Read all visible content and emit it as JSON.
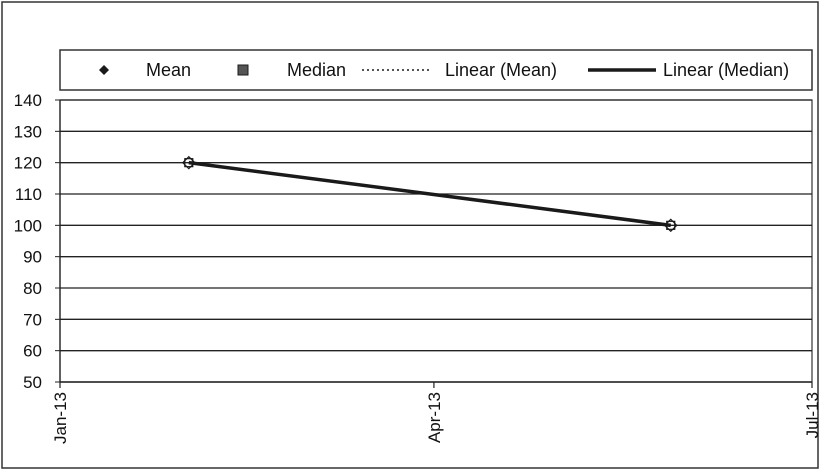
{
  "chart_data": {
    "type": "scatter",
    "title": "",
    "xlabel": "",
    "ylabel": "",
    "x_ticks": [
      "Jan-13",
      "Apr-13",
      "Jul-13"
    ],
    "xlim": [
      "2013-01-01",
      "2013-07-01"
    ],
    "ylim": [
      50,
      140
    ],
    "y_ticks": [
      50,
      60,
      70,
      80,
      90,
      100,
      110,
      120,
      130,
      140
    ],
    "grid": true,
    "legend_position": "top",
    "series": [
      {
        "name": "Mean",
        "marker": "diamond",
        "points": [
          {
            "x": "2013-02-01",
            "y": 120
          },
          {
            "x": "2013-05-28",
            "y": 100
          }
        ]
      },
      {
        "name": "Median",
        "marker": "square",
        "points": [
          {
            "x": "2013-02-01",
            "y": 120
          },
          {
            "x": "2013-05-28",
            "y": 100
          }
        ]
      },
      {
        "name": "Linear (Mean)",
        "type": "trendline",
        "style": "dotted",
        "points": [
          {
            "x": "2013-02-01",
            "y": 120
          },
          {
            "x": "2013-05-28",
            "y": 100
          }
        ]
      },
      {
        "name": "Linear (Median)",
        "type": "trendline",
        "style": "solid",
        "points": [
          {
            "x": "2013-02-01",
            "y": 120
          },
          {
            "x": "2013-05-28",
            "y": 100
          }
        ]
      }
    ]
  },
  "colors": {
    "line": "#1a1a1a",
    "grid": "#222222",
    "border": "#333333"
  }
}
